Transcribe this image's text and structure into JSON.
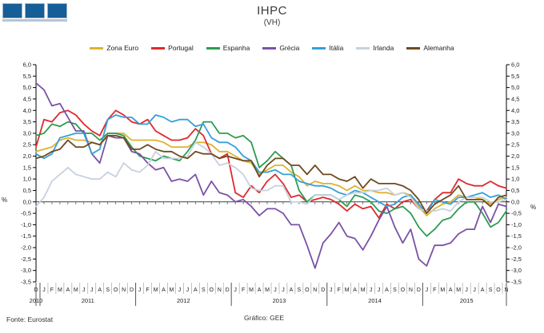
{
  "header": {
    "title": "IHPC",
    "subtitle": "(VH)"
  },
  "footer": {
    "source": "Fonte:  Eurostat",
    "credit": "Gráfico: GEE"
  },
  "logo": {
    "square_color": "#155E97",
    "shadow_color": "#B7C3D3",
    "square_count": 3
  },
  "chart_data": {
    "type": "line",
    "title": "IHPC",
    "subtitle": "(VH)",
    "ylabel": "%",
    "ylim": [
      -3.5,
      6.0
    ],
    "ytick_step": 0.5,
    "grid": false,
    "legend_position": "top",
    "y_ticks": [
      "6,0",
      "5,5",
      "5,0",
      "4,5",
      "4,0",
      "3,5",
      "3,0",
      "2,5",
      "2,0",
      "1,5",
      "1,0",
      "0,5",
      "0,0",
      "-0,5",
      "-1,0",
      "-1,5",
      "-2,0",
      "-2,5",
      "-3,0",
      "-3,5"
    ],
    "x_labels": [
      "D",
      "J",
      "F",
      "M",
      "A",
      "M",
      "J",
      "J",
      "A",
      "S",
      "O",
      "N",
      "D",
      "J",
      "F",
      "M",
      "A",
      "M",
      "J",
      "J",
      "A",
      "S",
      "O",
      "N",
      "D",
      "J",
      "F",
      "M",
      "A",
      "M",
      "J",
      "J",
      "A",
      "S",
      "O",
      "N",
      "D",
      "J",
      "F",
      "M",
      "A",
      "M",
      "J",
      "J",
      "A",
      "S",
      "O",
      "N",
      "D",
      "J",
      "F",
      "M",
      "A",
      "M",
      "J",
      "J",
      "A",
      "S",
      "O",
      "N"
    ],
    "years": [
      {
        "label": "2010",
        "months": 1
      },
      {
        "label": "2011",
        "months": 12
      },
      {
        "label": "2012",
        "months": 12
      },
      {
        "label": "2013",
        "months": 12
      },
      {
        "label": "2014",
        "months": 12
      },
      {
        "label": "2015",
        "months": 11
      }
    ],
    "series": [
      {
        "name": "Zona Euro",
        "color": "#DDB32F",
        "values": [
          2.2,
          2.3,
          2.4,
          2.7,
          2.8,
          2.7,
          2.7,
          2.6,
          2.5,
          3.0,
          3.0,
          3.0,
          2.7,
          2.7,
          2.7,
          2.7,
          2.6,
          2.4,
          2.4,
          2.4,
          2.6,
          2.6,
          2.5,
          2.2,
          2.2,
          2.0,
          1.8,
          1.7,
          1.2,
          1.4,
          1.6,
          1.6,
          1.3,
          1.1,
          0.7,
          0.9,
          0.8,
          0.8,
          0.7,
          0.5,
          0.7,
          0.5,
          0.5,
          0.4,
          0.4,
          0.3,
          0.4,
          0.3,
          -0.2,
          -0.6,
          -0.3,
          -0.1,
          0.0,
          0.3,
          0.2,
          0.2,
          0.1,
          -0.1,
          0.1,
          0.2
        ]
      },
      {
        "name": "Portugal",
        "color": "#DF2A2E",
        "values": [
          2.4,
          3.6,
          3.5,
          3.9,
          4.0,
          3.8,
          3.4,
          3.1,
          2.9,
          3.6,
          4.0,
          3.8,
          3.5,
          3.4,
          3.6,
          3.1,
          2.9,
          2.7,
          2.7,
          2.8,
          3.2,
          2.9,
          2.1,
          1.9,
          2.1,
          0.4,
          0.2,
          0.7,
          0.4,
          0.9,
          1.2,
          0.8,
          0.2,
          0.3,
          0.0,
          0.1,
          0.2,
          0.1,
          -0.1,
          -0.4,
          -0.1,
          -0.3,
          -0.2,
          -0.7,
          -0.1,
          -0.3,
          0.0,
          0.1,
          -0.3,
          -0.4,
          0.1,
          0.4,
          0.4,
          1.0,
          0.8,
          0.7,
          0.7,
          0.9,
          0.7,
          0.6
        ]
      },
      {
        "name": "Espanha",
        "color": "#2C9C51",
        "values": [
          2.9,
          3.0,
          3.4,
          3.3,
          3.5,
          3.4,
          3.0,
          3.0,
          2.7,
          3.0,
          3.0,
          2.9,
          2.4,
          2.0,
          1.9,
          1.8,
          2.0,
          1.9,
          1.8,
          2.2,
          2.7,
          3.5,
          3.5,
          3.0,
          3.0,
          2.8,
          2.9,
          2.6,
          1.5,
          1.8,
          2.2,
          1.9,
          1.6,
          0.5,
          0.0,
          0.3,
          0.3,
          0.3,
          0.1,
          -0.2,
          0.3,
          0.2,
          0.0,
          -0.4,
          -0.5,
          -0.3,
          -0.2,
          -0.5,
          -1.1,
          -1.5,
          -1.2,
          -0.8,
          -0.7,
          -0.3,
          0.0,
          0.0,
          -0.5,
          -1.1,
          -0.9,
          -0.4
        ]
      },
      {
        "name": "Grécia",
        "color": "#7A52A5",
        "values": [
          5.2,
          4.9,
          4.2,
          4.3,
          3.7,
          3.1,
          3.1,
          2.1,
          1.7,
          2.9,
          2.8,
          2.8,
          2.2,
          2.1,
          1.7,
          1.4,
          1.5,
          0.9,
          1.0,
          0.9,
          1.2,
          0.3,
          0.9,
          0.4,
          0.3,
          0.0,
          0.1,
          -0.2,
          -0.6,
          -0.3,
          -0.3,
          -0.5,
          -1.0,
          -1.0,
          -1.9,
          -2.9,
          -1.8,
          -1.4,
          -0.9,
          -1.5,
          -1.6,
          -2.1,
          -1.5,
          -0.8,
          -0.2,
          -1.1,
          -1.8,
          -1.2,
          -2.5,
          -2.8,
          -1.9,
          -1.9,
          -1.8,
          -1.4,
          -1.2,
          -1.2,
          -0.2,
          -0.9,
          -0.1,
          -0.2
        ]
      },
      {
        "name": "Itália",
        "color": "#33A0DC",
        "values": [
          2.1,
          1.9,
          2.1,
          2.8,
          2.9,
          3.0,
          3.0,
          2.1,
          2.3,
          3.6,
          3.8,
          3.7,
          3.7,
          3.4,
          3.4,
          3.8,
          3.7,
          3.5,
          3.6,
          3.6,
          3.3,
          3.4,
          2.8,
          2.6,
          2.6,
          2.4,
          2.0,
          1.8,
          1.3,
          1.3,
          1.4,
          1.2,
          1.2,
          0.9,
          0.8,
          0.7,
          0.7,
          0.6,
          0.4,
          0.3,
          0.5,
          0.4,
          0.2,
          0.0,
          -0.2,
          -0.1,
          0.2,
          0.3,
          -0.1,
          -0.5,
          0.1,
          0.0,
          -0.1,
          0.2,
          0.2,
          0.3,
          0.4,
          0.2,
          0.3,
          0.1
        ]
      },
      {
        "name": "Irlanda",
        "color": "#C8D1DF",
        "values": [
          -0.2,
          0.2,
          0.9,
          1.2,
          1.5,
          1.2,
          1.1,
          1.0,
          1.0,
          1.3,
          1.1,
          1.7,
          1.4,
          1.3,
          1.6,
          2.2,
          1.9,
          1.9,
          1.9,
          2.0,
          2.6,
          2.4,
          2.1,
          1.6,
          1.7,
          1.5,
          1.2,
          0.6,
          0.5,
          0.5,
          0.7,
          0.7,
          0.0,
          0.0,
          -0.1,
          0.3,
          0.3,
          0.3,
          0.1,
          0.3,
          0.4,
          0.4,
          0.5,
          0.5,
          0.6,
          0.3,
          0.4,
          0.2,
          -0.3,
          -0.4,
          -0.4,
          -0.3,
          -0.4,
          0.0,
          0.2,
          0.2,
          0.2,
          0.0,
          0.0,
          0.1
        ]
      },
      {
        "name": "Alemanha",
        "color": "#6E4B1F",
        "values": [
          1.9,
          2.0,
          2.2,
          2.3,
          2.7,
          2.4,
          2.4,
          2.6,
          2.5,
          2.9,
          2.9,
          2.8,
          2.3,
          2.3,
          2.5,
          2.3,
          2.2,
          2.2,
          2.0,
          1.9,
          2.2,
          2.1,
          2.1,
          1.9,
          2.0,
          1.9,
          1.8,
          1.8,
          1.1,
          1.6,
          1.9,
          1.9,
          1.6,
          1.6,
          1.2,
          1.6,
          1.2,
          1.2,
          1.0,
          0.9,
          1.1,
          0.6,
          1.0,
          0.8,
          0.8,
          0.8,
          0.7,
          0.5,
          0.1,
          -0.5,
          -0.1,
          0.1,
          0.3,
          0.7,
          0.1,
          0.1,
          0.1,
          -0.2,
          0.2,
          0.3
        ]
      }
    ]
  }
}
